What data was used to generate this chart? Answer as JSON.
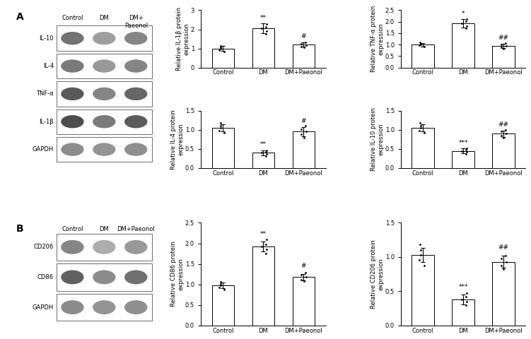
{
  "panel_A_blot_labels": [
    "IL-10",
    "IL-4",
    "TNF-α",
    "IL-1β",
    "GAPDH"
  ],
  "panel_B_blot_labels": [
    "CD206",
    "CD86",
    "GAPDH"
  ],
  "categories": [
    "Control",
    "DM",
    "DM+Paeonol"
  ],
  "IL1b": {
    "means": [
      1.0,
      2.05,
      1.2
    ],
    "sems": [
      0.12,
      0.25,
      0.12
    ],
    "ylabel": "Relative IL-1β protein\nexpression",
    "ylim": [
      0,
      3
    ],
    "yticks": [
      0,
      1,
      2,
      3
    ],
    "sig_dm": "**",
    "sig_dmp": "#"
  },
  "TNFa": {
    "means": [
      1.0,
      1.92,
      0.95
    ],
    "sems": [
      0.08,
      0.18,
      0.1
    ],
    "ylabel": "Relative TNF-α protein\nexpression",
    "ylim": [
      0.0,
      2.5
    ],
    "yticks": [
      0.0,
      0.5,
      1.0,
      1.5,
      2.0,
      2.5
    ],
    "sig_dm": "*",
    "sig_dmp": "##"
  },
  "IL4": {
    "means": [
      1.05,
      0.4,
      0.95
    ],
    "sems": [
      0.1,
      0.06,
      0.12
    ],
    "ylabel": "Relative IL-4 protein\nexpression",
    "ylim": [
      0.0,
      1.5
    ],
    "yticks": [
      0.0,
      0.5,
      1.0,
      1.5
    ],
    "sig_dm": "**",
    "sig_dmp": "#"
  },
  "IL10": {
    "means": [
      1.05,
      0.45,
      0.9
    ],
    "sems": [
      0.1,
      0.06,
      0.08
    ],
    "ylabel": "Relative IL-10 protein\nexpression",
    "ylim": [
      0.0,
      1.5
    ],
    "yticks": [
      0.0,
      0.5,
      1.0,
      1.5
    ],
    "sig_dm": "***",
    "sig_dmp": "##"
  },
  "CD86": {
    "means": [
      0.97,
      1.92,
      1.18
    ],
    "sems": [
      0.07,
      0.12,
      0.08
    ],
    "ylabel": "Relative CD86 protein\nexpression",
    "ylim": [
      0.0,
      2.5
    ],
    "yticks": [
      0.0,
      0.5,
      1.0,
      1.5,
      2.0,
      2.5
    ],
    "sig_dm": "**",
    "sig_dmp": "#"
  },
  "CD206": {
    "means": [
      1.03,
      0.38,
      0.93
    ],
    "sems": [
      0.1,
      0.07,
      0.09
    ],
    "ylabel": "Relative CD206 protein\nexpression",
    "ylim": [
      0.0,
      1.5
    ],
    "yticks": [
      0.0,
      0.5,
      1.0,
      1.5
    ],
    "sig_dm": "***",
    "sig_dmp": "##"
  },
  "scatter_IL1b": {
    "ctrl": [
      0.85,
      0.92,
      0.98,
      1.05,
      1.15
    ],
    "dm": [
      1.75,
      1.92,
      2.05,
      2.12,
      2.28
    ],
    "dmp": [
      1.05,
      1.1,
      1.18,
      1.25,
      1.32
    ]
  },
  "scatter_TNFa": {
    "ctrl": [
      0.9,
      0.96,
      1.0,
      1.05,
      1.1
    ],
    "dm": [
      1.7,
      1.82,
      1.92,
      2.02,
      2.12
    ],
    "dmp": [
      0.82,
      0.88,
      0.95,
      1.01,
      1.07
    ]
  },
  "scatter_IL4": {
    "ctrl": [
      0.92,
      0.98,
      1.05,
      1.1,
      1.18
    ],
    "dm": [
      0.32,
      0.37,
      0.4,
      0.43,
      0.47
    ],
    "dmp": [
      0.8,
      0.88,
      0.95,
      1.02,
      1.1
    ]
  },
  "scatter_IL10": {
    "ctrl": [
      0.93,
      0.98,
      1.05,
      1.1,
      1.18
    ],
    "dm": [
      0.37,
      0.42,
      0.45,
      0.48,
      0.52
    ],
    "dmp": [
      0.8,
      0.85,
      0.9,
      0.95,
      1.0
    ]
  },
  "scatter_CD86": {
    "ctrl": [
      0.87,
      0.92,
      0.97,
      1.02,
      1.06
    ],
    "dm": [
      1.75,
      1.85,
      1.92,
      1.98,
      2.1
    ],
    "dmp": [
      1.08,
      1.12,
      1.18,
      1.23,
      1.28
    ]
  },
  "scatter_CD206": {
    "ctrl": [
      0.88,
      0.96,
      1.03,
      1.1,
      1.18
    ],
    "dm": [
      0.3,
      0.35,
      0.38,
      0.42,
      0.47
    ],
    "dmp": [
      0.82,
      0.88,
      0.93,
      0.98,
      1.02
    ]
  },
  "blot_A_intensities": {
    "IL-10": [
      0.45,
      0.62,
      0.52
    ],
    "IL-4": [
      0.48,
      0.6,
      0.52
    ],
    "TNF-α": [
      0.35,
      0.52,
      0.4
    ],
    "IL-1β": [
      0.3,
      0.48,
      0.36
    ],
    "GAPDH": [
      0.55,
      0.58,
      0.56
    ]
  },
  "blot_B_intensities": {
    "CD206": [
      0.52,
      0.68,
      0.6
    ],
    "CD86": [
      0.38,
      0.55,
      0.44
    ],
    "GAPDH": [
      0.55,
      0.58,
      0.56
    ]
  },
  "bar_color": "#ffffff",
  "bar_edge_color": "#000000",
  "scatter_color": "#000000",
  "error_color": "#000000",
  "fontsize_label": 6.0,
  "fontsize_tick": 6.0,
  "fontsize_panel": 10,
  "fontsize_sig": 6.5,
  "fontsize_blot_label": 6.0,
  "fontsize_col_header": 6.0
}
